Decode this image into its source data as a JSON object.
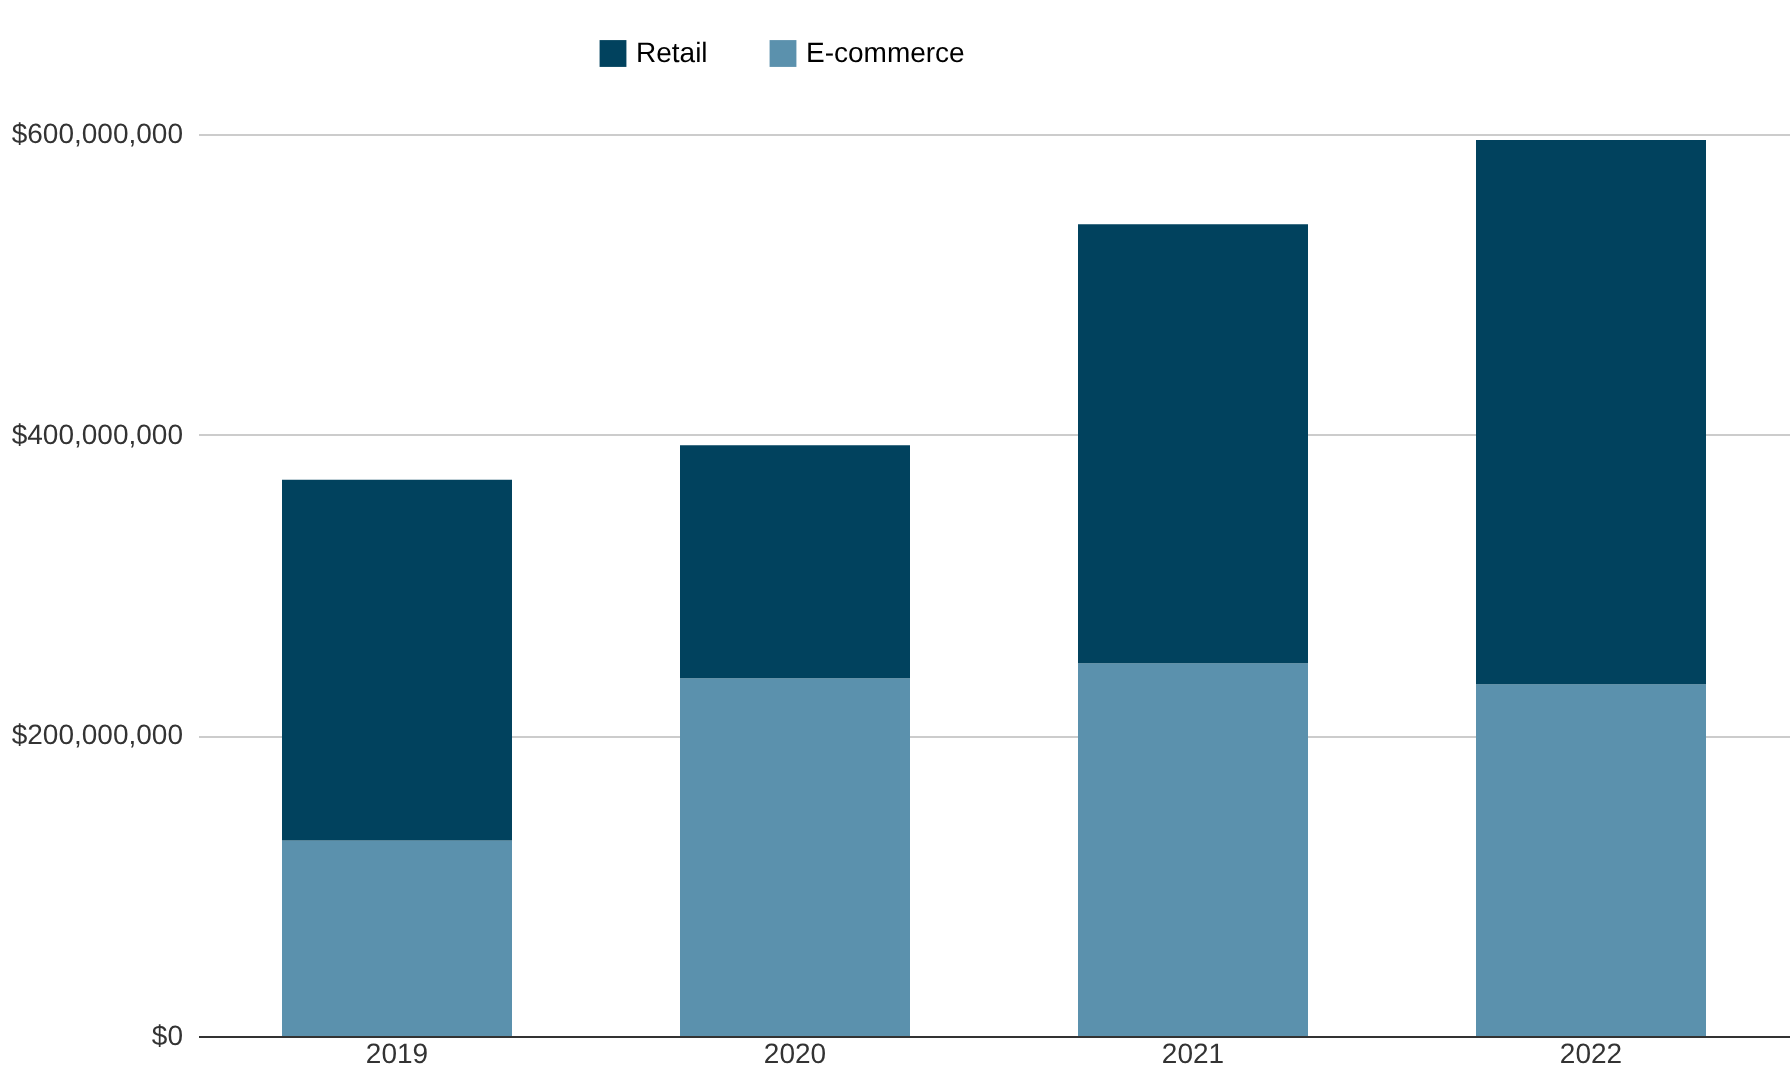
{
  "chart_data": {
    "type": "bar",
    "stacked": true,
    "categories": [
      "2019",
      "2020",
      "2021",
      "2022"
    ],
    "series": [
      {
        "name": "E-commerce",
        "color": "#5b91ad",
        "values": [
          130000000,
          238000000,
          248000000,
          234000000
        ]
      },
      {
        "name": "Retail",
        "color": "#01425e",
        "values": [
          240000000,
          155000000,
          292000000,
          362000000
        ]
      }
    ],
    "ylim": [
      0,
      600000000
    ],
    "yticks": [
      {
        "value": 0,
        "label": "$0"
      },
      {
        "value": 200000000,
        "label": "$200,000,000"
      },
      {
        "value": 400000000,
        "label": "$400,000,000"
      },
      {
        "value": 600000000,
        "label": "$600,000,000"
      }
    ],
    "grid": "y",
    "legend": "top"
  }
}
